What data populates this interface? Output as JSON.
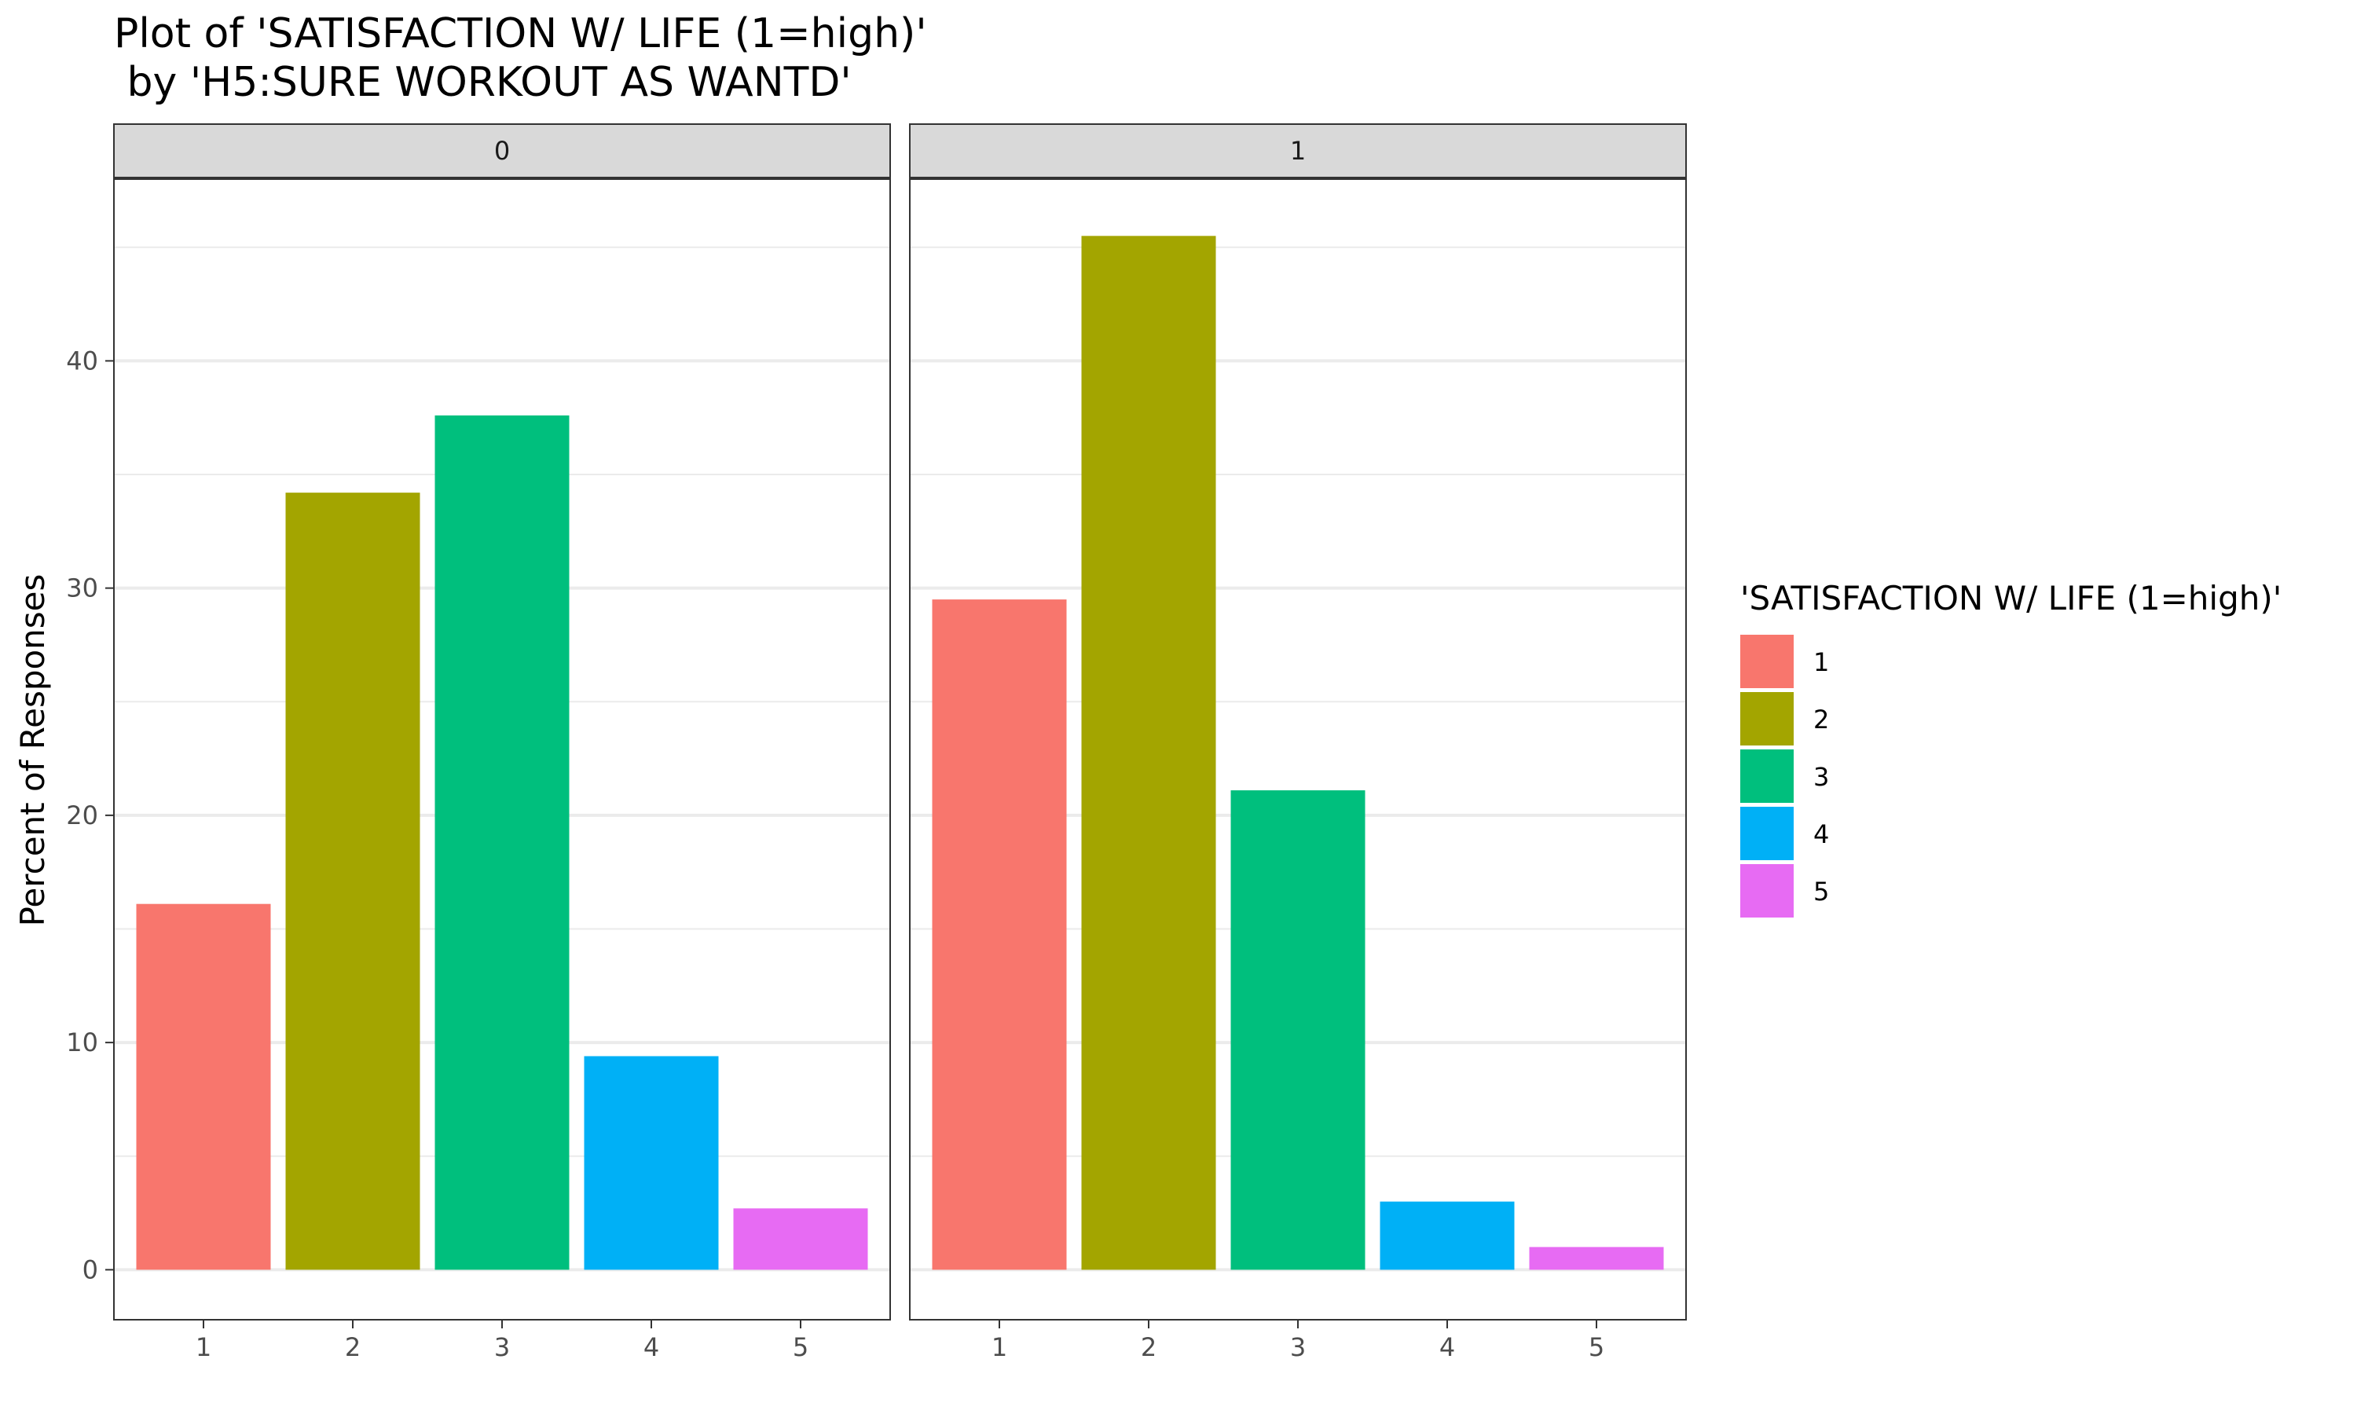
{
  "chart_data": {
    "type": "bar",
    "title": "Plot of 'SATISFACTION W/ LIFE (1=high)'",
    "subtitle": " by 'H5:SURE WORKOUT AS WANTD'",
    "xlabel": "",
    "ylabel": "Percent of Responses",
    "ylim": [
      -2.2,
      48
    ],
    "yticks": [
      0,
      10,
      20,
      30,
      40
    ],
    "categories": [
      "1",
      "2",
      "3",
      "4",
      "5"
    ],
    "facets": [
      {
        "label": "0",
        "values": [
          16.1,
          34.2,
          37.6,
          9.4,
          2.7
        ]
      },
      {
        "label": "1",
        "values": [
          29.5,
          45.5,
          21.1,
          3.0,
          1.0
        ]
      }
    ],
    "legend": {
      "title": "'SATISFACTION W/ LIFE (1=high)'",
      "placement": "right",
      "entries": [
        {
          "label": "1",
          "color": "#F8766D"
        },
        {
          "label": "2",
          "color": "#A3A500"
        },
        {
          "label": "3",
          "color": "#00BF7D"
        },
        {
          "label": "4",
          "color": "#00B0F6"
        },
        {
          "label": "5",
          "color": "#E76BF3"
        }
      ]
    },
    "grid": true
  }
}
